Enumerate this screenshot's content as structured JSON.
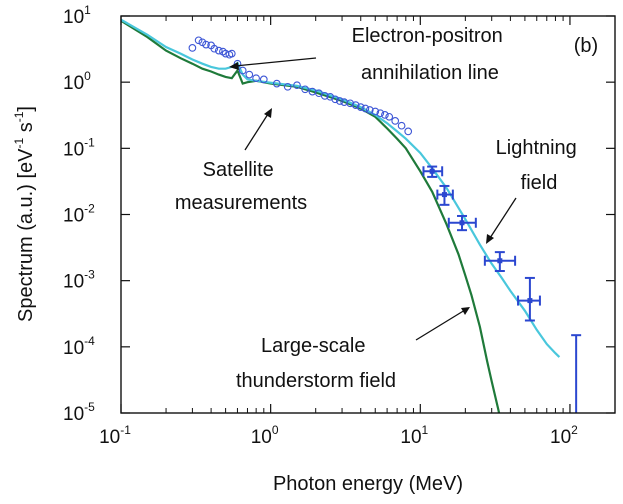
{
  "chart_data": {
    "type": "line",
    "panel_label": "(b)",
    "xlabel": "Photon energy (MeV)",
    "ylabel": "Spectrum (a.u.) [eV",
    "ylabel_unit_tail": " s",
    "ylabel_close": "]",
    "ylabel_sup": "-1",
    "x_scale": "log",
    "y_scale": "log",
    "xlim": [
      0.1,
      200
    ],
    "ylim": [
      1e-05,
      10
    ],
    "grid": false,
    "x_ticks": [
      {
        "base": "10",
        "exp": "-1",
        "value": 0.1
      },
      {
        "base": "10",
        "exp": "0",
        "value": 1
      },
      {
        "base": "10",
        "exp": "1",
        "value": 10
      },
      {
        "base": "10",
        "exp": "2",
        "value": 100
      }
    ],
    "y_ticks": [
      {
        "base": "10",
        "exp": "1",
        "value": 10
      },
      {
        "base": "10",
        "exp": "0",
        "value": 1
      },
      {
        "base": "10",
        "exp": "-1",
        "value": 0.1
      },
      {
        "base": "10",
        "exp": "-2",
        "value": 0.01
      },
      {
        "base": "10",
        "exp": "-3",
        "value": 0.001
      },
      {
        "base": "10",
        "exp": "-4",
        "value": 0.0001
      },
      {
        "base": "10",
        "exp": "-5",
        "value": 1e-05
      }
    ],
    "series": [
      {
        "kind": "line",
        "color": "#1f7a3a",
        "x": [
          0.1,
          0.15,
          0.2,
          0.25,
          0.3,
          0.35,
          0.4,
          0.45,
          0.5,
          0.55,
          0.6,
          0.65,
          0.7,
          0.8,
          1.0,
          1.5,
          2,
          3,
          4,
          5,
          6,
          7,
          8,
          10,
          12,
          15,
          18,
          20,
          22,
          25,
          28,
          30,
          33,
          36
        ],
        "y": [
          8.5,
          4.8,
          3.0,
          2.3,
          1.9,
          1.6,
          1.45,
          1.3,
          1.2,
          1.15,
          1.5,
          0.95,
          1.0,
          1.05,
          0.95,
          0.85,
          0.7,
          0.52,
          0.4,
          0.3,
          0.2,
          0.14,
          0.1,
          0.045,
          0.022,
          0.007,
          0.0025,
          0.0012,
          0.0006,
          0.0002,
          6e-05,
          3e-05,
          1.2e-05,
          5e-06
        ]
      },
      {
        "kind": "line",
        "color": "#49c7dc",
        "x": [
          0.1,
          0.15,
          0.2,
          0.25,
          0.3,
          0.35,
          0.4,
          0.45,
          0.5,
          0.55,
          0.6,
          0.65,
          0.7,
          0.8,
          1.0,
          1.5,
          2,
          3,
          4,
          5,
          6,
          7,
          8,
          10,
          12,
          15,
          20,
          25,
          30,
          35,
          40,
          50,
          60,
          70,
          80,
          85
        ],
        "y": [
          8.8,
          5.2,
          3.4,
          2.7,
          2.2,
          1.9,
          1.7,
          1.6,
          1.6,
          1.7,
          1.95,
          1.3,
          1.1,
          1.05,
          0.98,
          0.88,
          0.75,
          0.55,
          0.42,
          0.32,
          0.24,
          0.18,
          0.14,
          0.085,
          0.05,
          0.025,
          0.0085,
          0.0035,
          0.0018,
          0.0011,
          0.0007,
          0.00035,
          0.00018,
          0.00011,
          8e-05,
          7e-05
        ]
      },
      {
        "kind": "scatter",
        "name": "Satellite measurements",
        "color": "#3d56d6",
        "x": [
          0.3,
          0.33,
          0.35,
          0.37,
          0.4,
          0.42,
          0.45,
          0.48,
          0.5,
          0.53,
          0.55,
          0.6,
          0.65,
          0.72,
          0.8,
          0.9,
          1.1,
          1.3,
          1.5,
          1.7,
          1.9,
          2.1,
          2.3,
          2.5,
          2.7,
          2.9,
          3.1,
          3.4,
          3.7,
          4.0,
          4.3,
          4.6,
          5.0,
          5.4,
          5.8,
          6.2,
          6.8,
          7.5,
          8.3
        ],
        "y": [
          3.3,
          4.3,
          4.0,
          3.7,
          3.6,
          3.2,
          3.0,
          2.9,
          2.7,
          2.6,
          2.7,
          1.9,
          1.5,
          1.3,
          1.15,
          1.1,
          0.95,
          0.85,
          0.9,
          0.78,
          0.72,
          0.68,
          0.62,
          0.6,
          0.55,
          0.52,
          0.5,
          0.48,
          0.45,
          0.42,
          0.4,
          0.38,
          0.36,
          0.34,
          0.32,
          0.3,
          0.26,
          0.22,
          0.18
        ]
      },
      {
        "kind": "errorbar",
        "name": "Satellite measurements",
        "color": "#2b47d0",
        "points": [
          {
            "x": 12,
            "y": 0.045,
            "xerr": [
              10.5,
              14
            ],
            "yerr": [
              0.037,
              0.053
            ]
          },
          {
            "x": 14.5,
            "y": 0.02,
            "xerr": [
              13,
              16.5
            ],
            "yerr": [
              0.014,
              0.027
            ]
          },
          {
            "x": 19,
            "y": 0.0075,
            "xerr": [
              15.5,
              23.5
            ],
            "yerr": [
              0.0058,
              0.0095
            ]
          },
          {
            "x": 34,
            "y": 0.002,
            "xerr": [
              27,
              43
            ],
            "yerr": [
              0.0014,
              0.0027
            ]
          },
          {
            "x": 54,
            "y": 0.0005,
            "xerr": [
              45,
              63
            ],
            "yerr": [
              0.00025,
              0.0011
            ]
          },
          {
            "x": 110,
            "y": 8.5e-06,
            "xerr": [
              72,
              155
            ],
            "yerr": [
              3e-06,
              0.00015
            ]
          }
        ]
      }
    ],
    "annotations": [
      {
        "lines": [
          "Electron-positron",
          "annihilation line"
        ]
      },
      {
        "lines": [
          "Satellite",
          "measurements"
        ]
      },
      {
        "lines": [
          "Lightning",
          "field"
        ]
      },
      {
        "lines": [
          "Large-scale",
          "thunderstorm field"
        ]
      }
    ]
  }
}
